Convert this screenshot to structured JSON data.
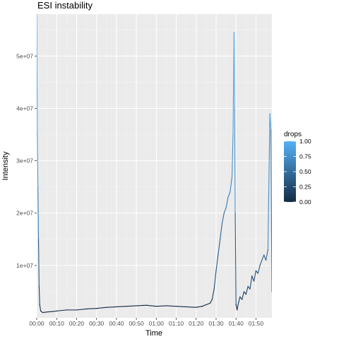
{
  "chart_data": {
    "type": "line",
    "title": "ESI instability",
    "xlabel": "Time",
    "ylabel": "Intensity",
    "x_unit": "minutes",
    "xlim": [
      0,
      118
    ],
    "ylim": [
      0,
      58000000
    ],
    "x_ticks": [
      {
        "value": 0,
        "label": "00:00"
      },
      {
        "value": 10,
        "label": "00:10"
      },
      {
        "value": 20,
        "label": "00:20"
      },
      {
        "value": 30,
        "label": "00:30"
      },
      {
        "value": 40,
        "label": "00:40"
      },
      {
        "value": 50,
        "label": "00:50"
      },
      {
        "value": 60,
        "label": "01:00"
      },
      {
        "value": 70,
        "label": "01:10"
      },
      {
        "value": 80,
        "label": "01:20"
      },
      {
        "value": 90,
        "label": "01:30"
      },
      {
        "value": 100,
        "label": "01:40"
      },
      {
        "value": 110,
        "label": "01:50"
      }
    ],
    "y_ticks": [
      {
        "value": 10000000,
        "label": "1e+07"
      },
      {
        "value": 20000000,
        "label": "2e+07"
      },
      {
        "value": 30000000,
        "label": "3e+07"
      },
      {
        "value": 40000000,
        "label": "4e+07"
      },
      {
        "value": 50000000,
        "label": "5e+07"
      }
    ],
    "grid": true,
    "legend": {
      "title": "drops",
      "position": "right",
      "type": "colorbar",
      "range": [
        0,
        1
      ],
      "labels": [
        "1.00",
        "0.75",
        "0.50",
        "0.25",
        "0.00"
      ],
      "low_color": "#132B43",
      "high_color": "#56B1F7"
    },
    "colors": {
      "panel": "#EBEBEB",
      "grid_major": "#FFFFFF",
      "grid_minor": "#F3F3F3",
      "line": "#132B43",
      "highlight": "#56B1F7"
    },
    "series": [
      {
        "x": [
          0,
          0.3,
          0.6,
          0.9,
          1.2,
          1.5,
          2,
          3,
          5,
          8,
          10,
          15,
          20,
          25,
          30,
          35,
          40,
          45,
          50,
          55,
          60,
          65,
          70,
          75,
          80,
          83,
          85,
          87,
          88,
          89,
          90,
          91,
          92,
          93,
          94,
          95,
          96,
          97,
          98,
          98.5,
          99,
          99.3,
          99.6,
          100,
          100.5,
          101,
          102,
          103,
          104,
          105,
          106,
          107,
          108,
          109,
          110,
          111,
          112,
          113,
          114,
          115,
          116,
          117,
          117.5,
          118
        ],
        "y": [
          58000000,
          35000000,
          25000000,
          15000000,
          6000000,
          2500000,
          1300000,
          1000000,
          1100000,
          1200000,
          1300000,
          1500000,
          1500000,
          1700000,
          1800000,
          2000000,
          2100000,
          2200000,
          2300000,
          2400000,
          2200000,
          2300000,
          2200000,
          2100000,
          2000000,
          2200000,
          2500000,
          2800000,
          3500000,
          5500000,
          9000000,
          12000000,
          15000000,
          18000000,
          20000000,
          21000000,
          23000000,
          24000000,
          27000000,
          35000000,
          54500000,
          40000000,
          20000000,
          2500000,
          1500000,
          2500000,
          4000000,
          3500000,
          5000000,
          4500000,
          6000000,
          5500000,
          8000000,
          7000000,
          9000000,
          8500000,
          10000000,
          11000000,
          12000000,
          11000000,
          13000000,
          39000000,
          36000000,
          5000000
        ],
        "drops": [
          1,
          0.9,
          0.8,
          0.5,
          0.2,
          0.1,
          0.05,
          0,
          0,
          0,
          0,
          0,
          0,
          0,
          0,
          0,
          0,
          0,
          0,
          0,
          0,
          0,
          0,
          0,
          0,
          0,
          0,
          0,
          0.1,
          0.2,
          0.3,
          0.35,
          0.4,
          0.45,
          0.5,
          0.55,
          0.6,
          0.65,
          0.7,
          0.8,
          1,
          0.9,
          0.6,
          0.1,
          0,
          0.05,
          0.1,
          0.1,
          0.15,
          0.15,
          0.2,
          0.2,
          0.25,
          0.25,
          0.3,
          0.3,
          0.35,
          0.35,
          0.4,
          0.4,
          0.45,
          1,
          0.9,
          0.2
        ]
      }
    ]
  }
}
